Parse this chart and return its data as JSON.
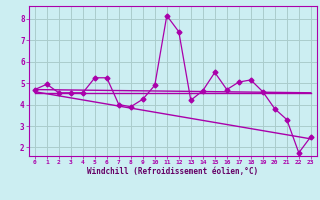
{
  "xlabel": "Windchill (Refroidissement éolien,°C)",
  "bg_color": "#cceef2",
  "grid_color": "#aacccc",
  "line_color": "#aa00aa",
  "spine_color": "#aa00aa",
  "tick_color": "#aa00aa",
  "label_color": "#660066",
  "xlim": [
    -0.5,
    23.5
  ],
  "ylim": [
    1.6,
    8.6
  ],
  "yticks": [
    2,
    3,
    4,
    5,
    6,
    7,
    8
  ],
  "xticks": [
    0,
    1,
    2,
    3,
    4,
    5,
    6,
    7,
    8,
    9,
    10,
    11,
    12,
    13,
    14,
    15,
    16,
    17,
    18,
    19,
    20,
    21,
    22,
    23
  ],
  "data_jagged": [
    [
      0,
      4.7
    ],
    [
      1,
      4.95
    ],
    [
      2,
      4.55
    ],
    [
      3,
      4.55
    ],
    [
      4,
      4.55
    ],
    [
      5,
      5.25
    ],
    [
      6,
      5.25
    ],
    [
      7,
      4.0
    ],
    [
      8,
      3.9
    ],
    [
      9,
      4.25
    ],
    [
      10,
      4.9
    ],
    [
      11,
      8.15
    ],
    [
      12,
      7.4
    ],
    [
      13,
      4.2
    ],
    [
      14,
      4.65
    ],
    [
      15,
      5.5
    ],
    [
      16,
      4.7
    ],
    [
      17,
      5.05
    ],
    [
      18,
      5.15
    ],
    [
      19,
      4.6
    ],
    [
      20,
      3.8
    ],
    [
      21,
      3.3
    ],
    [
      22,
      1.75
    ],
    [
      23,
      2.5
    ]
  ],
  "trend1_x": [
    0,
    23
  ],
  "trend1_y": [
    4.7,
    4.55
  ],
  "trend2_x": [
    0,
    23
  ],
  "trend2_y": [
    4.55,
    4.55
  ],
  "trend3_x": [
    0,
    23
  ],
  "trend3_y": [
    4.6,
    2.4
  ]
}
